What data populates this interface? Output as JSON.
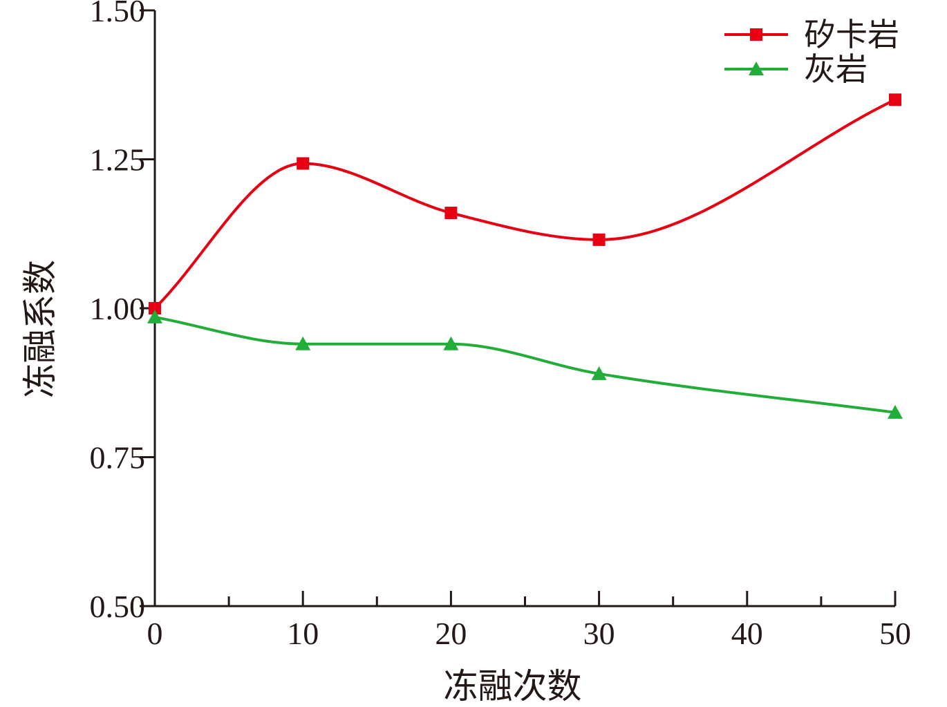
{
  "chart_data": {
    "type": "line",
    "title": "",
    "xlabel": "冻融次数",
    "ylabel": "冻融系数",
    "xlim": [
      0,
      50
    ],
    "ylim": [
      0.5,
      1.5
    ],
    "x_ticks": [
      0,
      10,
      20,
      30,
      40,
      50
    ],
    "y_ticks": [
      0.5,
      0.75,
      1.0,
      1.25,
      1.5
    ],
    "x_tick_labels": [
      "0",
      "10",
      "20",
      "30",
      "40",
      "50"
    ],
    "y_tick_labels": [
      "0.50",
      "0.75",
      "1.00",
      "1.25",
      "1.50"
    ],
    "grid": false,
    "smooth": true,
    "legend_position": "top-right",
    "series": [
      {
        "name": "矽卡岩",
        "color": "#e60012",
        "marker": "square",
        "x": [
          0,
          10,
          20,
          30,
          50
        ],
        "y": [
          1.0,
          1.243,
          1.16,
          1.115,
          1.35
        ]
      },
      {
        "name": "灰岩",
        "color": "#22ac38",
        "marker": "triangle",
        "x": [
          0,
          10,
          20,
          30,
          50
        ],
        "y": [
          0.985,
          0.94,
          0.94,
          0.89,
          0.825
        ]
      }
    ]
  }
}
